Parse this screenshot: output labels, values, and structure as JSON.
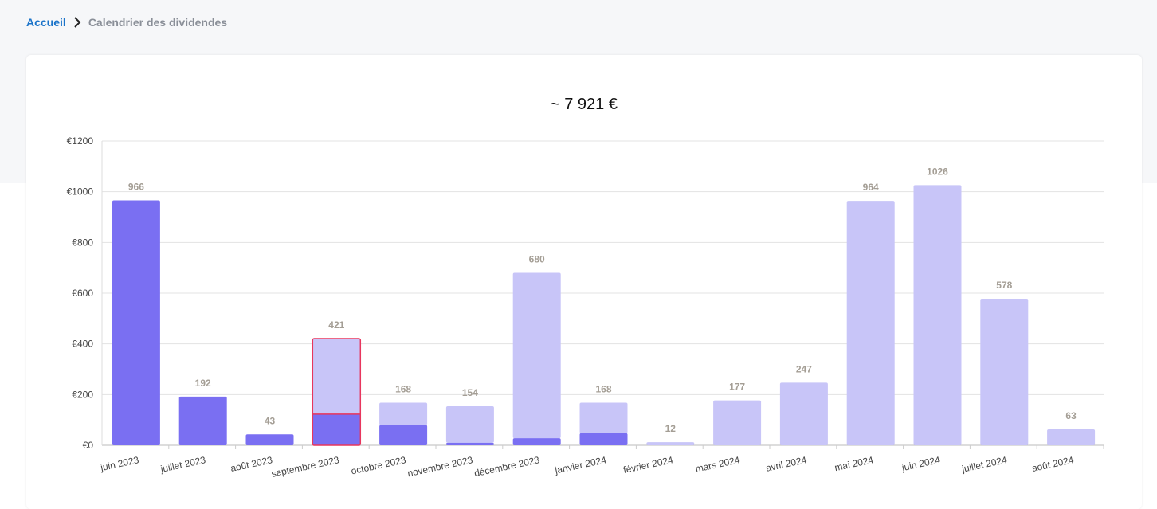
{
  "breadcrumb": {
    "home": "Accueil",
    "current": "Calendrier des dividendes"
  },
  "summary": {
    "total": "~ 7 921 €"
  },
  "colors": {
    "received": "#7a6ff2",
    "forecast": "#c8c5f8",
    "highlight": "#e8365d",
    "data_label": "#a49e95",
    "link": "#1a73c9"
  },
  "chart_data": {
    "type": "bar",
    "stacked": true,
    "categories": [
      "juin 2023",
      "juillet 2023",
      "août 2023",
      "septembre 2023",
      "octobre 2023",
      "novembre 2023",
      "décembre 2023",
      "janvier 2024",
      "février 2024",
      "mars 2024",
      "avril 2024",
      "mai 2024",
      "juin 2024",
      "juillet 2024",
      "août 2024"
    ],
    "series": [
      {
        "values": [
          966,
          192,
          43,
          123,
          80,
          10,
          28,
          48,
          0,
          0,
          0,
          0,
          0,
          0,
          0
        ]
      },
      {
        "values": [
          0,
          0,
          0,
          298,
          88,
          144,
          652,
          120,
          12,
          177,
          247,
          964,
          1026,
          578,
          63
        ]
      }
    ],
    "totals": [
      966,
      192,
      43,
      421,
      168,
      154,
      680,
      168,
      12,
      177,
      247,
      964,
      1026,
      578,
      63
    ],
    "yticks": [
      "€0",
      "€200",
      "€400",
      "€600",
      "€800",
      "€1000",
      "€1200"
    ],
    "ylim": [
      0,
      1200
    ],
    "highlighted_category": "septembre 2023",
    "grid": true,
    "legend": "none"
  }
}
